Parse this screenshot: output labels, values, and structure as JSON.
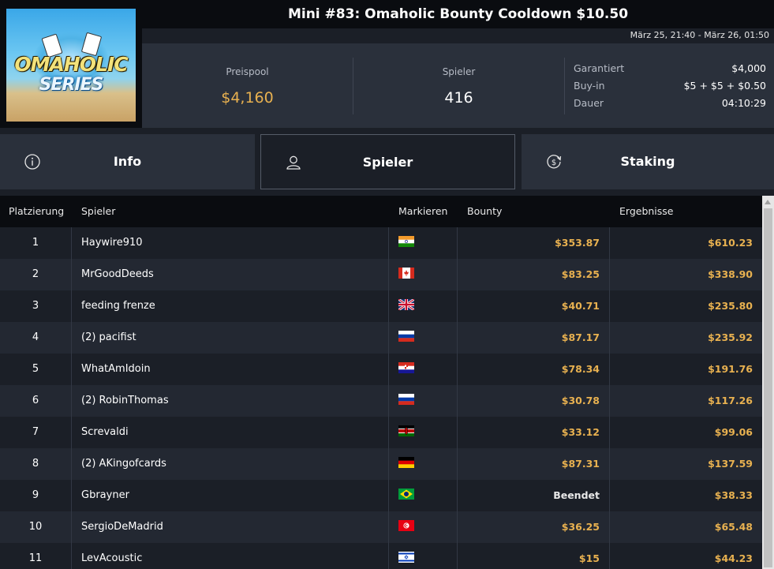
{
  "header": {
    "title": "Mini #83: Omaholic Bounty Cooldown $10.50",
    "date_range": "März 25, 21:40 - März 26, 01:50",
    "logo_text_1": "OMAHOLIC",
    "logo_text_2": "SERIES"
  },
  "stats": {
    "prizepool_label": "Preispool",
    "prizepool_value": "$4,160",
    "players_label": "Spieler",
    "players_value": "416",
    "guaranteed_label": "Garantiert",
    "guaranteed_value": "$4,000",
    "buyin_label": "Buy-in",
    "buyin_value": "$5 + $5 + $0.50",
    "duration_label": "Dauer",
    "duration_value": "04:10:29"
  },
  "tabs": [
    {
      "label": "Info",
      "icon": "info-icon"
    },
    {
      "label": "Spieler",
      "icon": "user-icon",
      "active": true
    },
    {
      "label": "Staking",
      "icon": "dollar-cycle-icon"
    }
  ],
  "table": {
    "headers": [
      "Platzierung",
      "Spieler",
      "Markieren",
      "Bounty",
      "Ergebnisse"
    ],
    "rows": [
      {
        "rank": "1",
        "name": "Haywire910",
        "flag": "IN",
        "bounty": "$353.87",
        "result": "$610.23"
      },
      {
        "rank": "2",
        "name": "MrGoodDeeds",
        "flag": "CA",
        "bounty": "$83.25",
        "result": "$338.90"
      },
      {
        "rank": "3",
        "name": "feeding frenze",
        "flag": "GB",
        "bounty": "$40.71",
        "result": "$235.80"
      },
      {
        "rank": "4",
        "name": "(2) pacifist",
        "flag": "RU",
        "bounty": "$87.17",
        "result": "$235.92"
      },
      {
        "rank": "5",
        "name": "WhatAmIdoin",
        "flag": "HR",
        "bounty": "$78.34",
        "result": "$191.76"
      },
      {
        "rank": "6",
        "name": "(2) RobinThomas",
        "flag": "RU",
        "bounty": "$30.78",
        "result": "$117.26"
      },
      {
        "rank": "7",
        "name": "Screvaldi",
        "flag": "KE",
        "bounty": "$33.12",
        "result": "$99.06"
      },
      {
        "rank": "8",
        "name": "(2) AKingofcards",
        "flag": "DE",
        "bounty": "$87.31",
        "result": "$137.59"
      },
      {
        "rank": "9",
        "name": "Gbrayner",
        "flag": "BR",
        "bounty": "Beendet",
        "result": "$38.33"
      },
      {
        "rank": "10",
        "name": "SergioDeMadrid",
        "flag": "TN",
        "bounty": "$36.25",
        "result": "$65.48"
      },
      {
        "rank": "11",
        "name": "LevAcoustic",
        "flag": "IL",
        "bounty": "$15",
        "result": "$44.23"
      }
    ]
  },
  "colors": {
    "accent_gold": "#e8b150",
    "background": "#1b1f27",
    "panel": "#2a303b"
  }
}
